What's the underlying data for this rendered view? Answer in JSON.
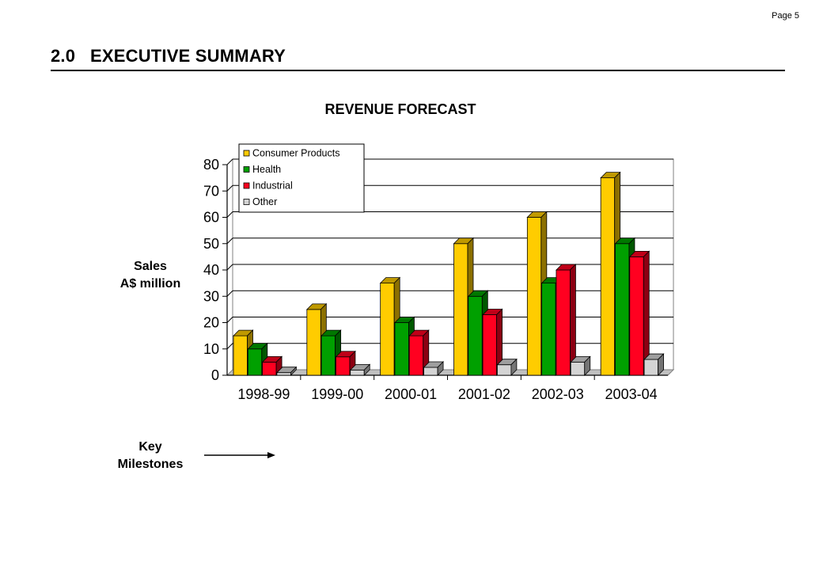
{
  "page": {
    "number_label": "Page 5"
  },
  "section": {
    "number": "2.0",
    "title": "EXECUTIVE SUMMARY"
  },
  "side_labels": {
    "sales_line1": "Sales",
    "sales_line2": "A$ million",
    "key_line1": "Key",
    "key_line2": "Milestones"
  },
  "chart_data": {
    "type": "bar",
    "title": "REVENUE FORECAST",
    "xlabel": "",
    "ylabel": "Sales A$ million",
    "categories": [
      "1998-99",
      "1999-00",
      "2000-01",
      "2001-02",
      "2002-03",
      "2003-04"
    ],
    "series": [
      {
        "name": "Consumer Products",
        "values": [
          15,
          25,
          35,
          50,
          60,
          75
        ],
        "color": "#ffcc00"
      },
      {
        "name": "Health",
        "values": [
          10,
          15,
          20,
          30,
          35,
          50
        ],
        "color": "#00a000"
      },
      {
        "name": "Industrial",
        "values": [
          5,
          7,
          15,
          23,
          40,
          45
        ],
        "color": "#ff0020"
      },
      {
        "name": "Other",
        "values": [
          1,
          2,
          3,
          4,
          5,
          6
        ],
        "color": "#d4d4d4"
      }
    ],
    "ylim": [
      0,
      80
    ],
    "yticks": [
      0,
      10,
      20,
      30,
      40,
      50,
      60,
      70,
      80
    ],
    "grid": true,
    "legend_position": "top-left",
    "style": "3d-bar"
  }
}
